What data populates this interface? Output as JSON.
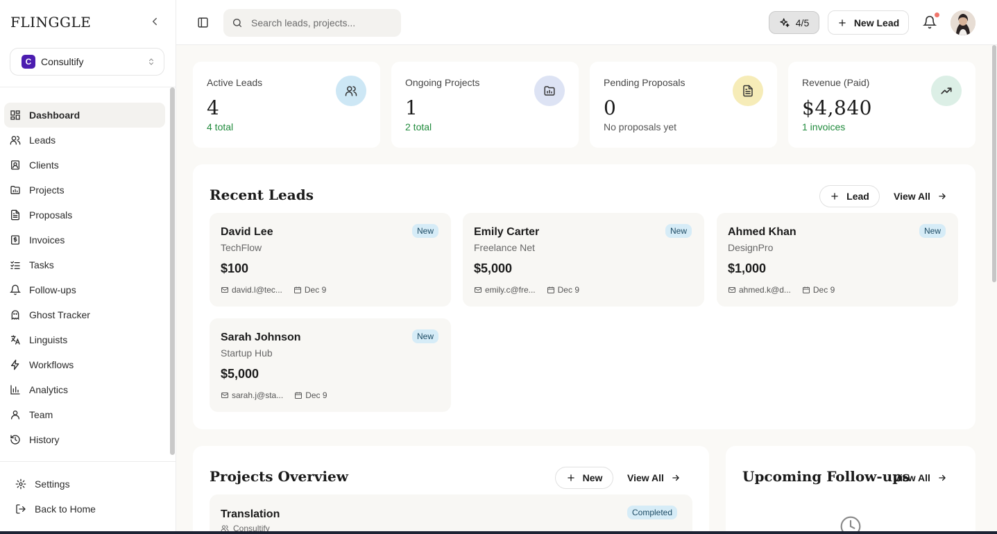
{
  "sidebar": {
    "brand": "FLINGGLE",
    "workspace": {
      "initial": "C",
      "name": "Consultify"
    },
    "items": [
      {
        "label": "Dashboard",
        "icon": "dashboard-icon",
        "active": true
      },
      {
        "label": "Leads",
        "icon": "users-icon"
      },
      {
        "label": "Clients",
        "icon": "contact-icon"
      },
      {
        "label": "Projects",
        "icon": "folder-chart-icon"
      },
      {
        "label": "Proposals",
        "icon": "document-icon"
      },
      {
        "label": "Invoices",
        "icon": "invoice-icon"
      },
      {
        "label": "Tasks",
        "icon": "list-check-icon"
      },
      {
        "label": "Follow-ups",
        "icon": "bell-icon"
      },
      {
        "label": "Ghost Tracker",
        "icon": "ghost-icon"
      },
      {
        "label": "Linguists",
        "icon": "translate-icon"
      },
      {
        "label": "Workflows",
        "icon": "zap-icon"
      },
      {
        "label": "Analytics",
        "icon": "bar-chart-icon"
      },
      {
        "label": "Team",
        "icon": "user-icon"
      },
      {
        "label": "History",
        "icon": "history-icon"
      }
    ],
    "bottom": [
      {
        "label": "Settings",
        "icon": "gear-icon"
      },
      {
        "label": "Back to Home",
        "icon": "logout-icon"
      }
    ]
  },
  "topbar": {
    "search_placeholder": "Search leads, projects...",
    "ai_credits": "4/5",
    "new_lead_label": "New Lead"
  },
  "stats": [
    {
      "label": "Active Leads",
      "value": "4",
      "sub": "4 total",
      "sub_color": "green",
      "icon": "users-icon",
      "icon_bg": "#cde7f5"
    },
    {
      "label": "Ongoing Projects",
      "value": "1",
      "sub": "2 total",
      "sub_color": "green",
      "icon": "folder-chart-icon",
      "icon_bg": "#dde3f4"
    },
    {
      "label": "Pending Proposals",
      "value": "0",
      "sub": "No proposals yet",
      "sub_color": "grey",
      "icon": "document-icon",
      "icon_bg": "#f6ecb8"
    },
    {
      "label": "Revenue (Paid)",
      "value": "$4,840",
      "sub": "1 invoices",
      "sub_color": "green",
      "icon": "trending-up-icon",
      "icon_bg": "#dcefe6"
    }
  ],
  "recent_leads": {
    "title": "Recent Leads",
    "add_label": "Lead",
    "view_all_label": "View All",
    "items": [
      {
        "name": "David Lee",
        "company": "TechFlow",
        "value": "$100",
        "email": "david.l@tec...",
        "date": "Dec 9",
        "status": "New"
      },
      {
        "name": "Emily Carter",
        "company": "Freelance Net",
        "value": "$5,000",
        "email": "emily.c@fre...",
        "date": "Dec 9",
        "status": "New"
      },
      {
        "name": "Ahmed Khan",
        "company": "DesignPro",
        "value": "$1,000",
        "email": "ahmed.k@d...",
        "date": "Dec 9",
        "status": "New"
      },
      {
        "name": "Sarah Johnson",
        "company": "Startup Hub",
        "value": "$5,000",
        "email": "sarah.j@sta...",
        "date": "Dec 9",
        "status": "New"
      }
    ]
  },
  "projects_overview": {
    "title": "Projects Overview",
    "add_label": "New",
    "view_all_label": "View All",
    "items": [
      {
        "name": "Translation",
        "client": "Consultify",
        "status": "Completed"
      }
    ]
  },
  "followups": {
    "title": "Upcoming Follow-ups",
    "view_all_label": "View All"
  }
}
